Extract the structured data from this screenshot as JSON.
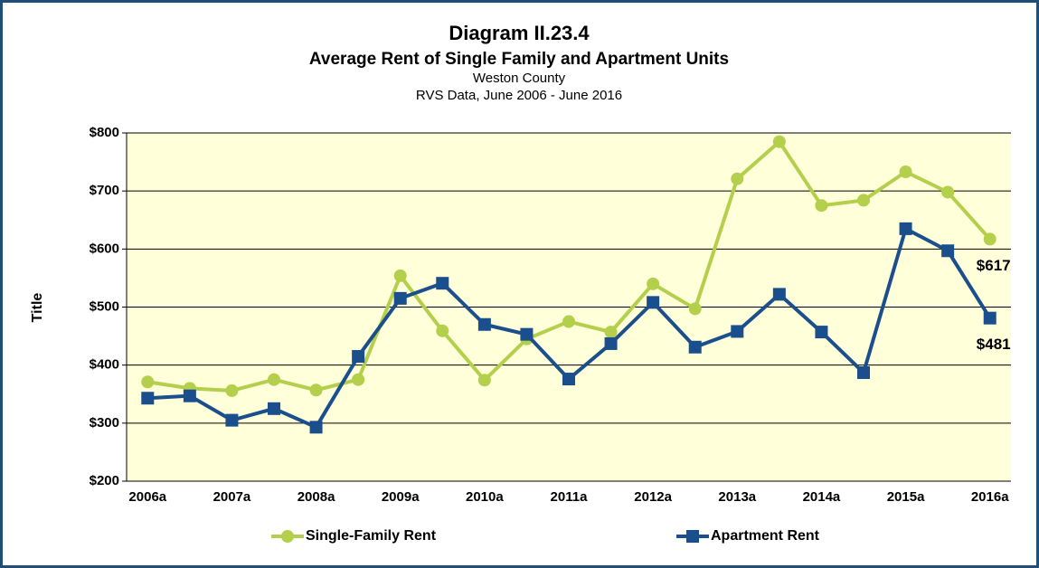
{
  "chart_data": {
    "type": "line",
    "title": "Diagram II.23.4",
    "subtitle": "Average Rent of Single Family and Apartment Units",
    "subtitle2": "Weston County",
    "subtitle3": "RVS Data, June 2006 - June 2016",
    "y_label": "Title",
    "categories": [
      "2006a",
      null,
      "2007a",
      null,
      "2008a",
      null,
      "2009a",
      null,
      "2010a",
      null,
      "2011a",
      null,
      "2012a",
      null,
      "2013a",
      null,
      "2014a",
      null,
      "2015a",
      null,
      "2016a"
    ],
    "series": [
      {
        "name": "Single-Family Rent",
        "color": "#b3cf4b",
        "marker": "circle",
        "values": [
          371,
          360,
          356,
          375,
          357,
          375,
          554,
          459,
          374,
          445,
          475,
          457,
          540,
          497,
          721,
          785,
          675,
          684,
          733,
          698,
          617
        ],
        "value_labels": [
          null,
          null,
          null,
          null,
          null,
          null,
          null,
          null,
          null,
          null,
          null,
          null,
          null,
          null,
          null,
          null,
          null,
          null,
          null,
          null,
          "$617"
        ]
      },
      {
        "name": "Apartment Rent",
        "color": "#1a4e8c",
        "marker": "square",
        "values": [
          343,
          347,
          305,
          325,
          293,
          415,
          515,
          541,
          470,
          453,
          376,
          437,
          508,
          431,
          458,
          522,
          457,
          387,
          635,
          597,
          481
        ],
        "value_labels": [
          null,
          null,
          null,
          null,
          null,
          null,
          null,
          null,
          null,
          null,
          null,
          null,
          null,
          null,
          null,
          null,
          null,
          null,
          null,
          null,
          "$481"
        ]
      }
    ],
    "ylim": [
      200,
      800
    ],
    "yticks": [
      {
        "value": 200,
        "label": "$200"
      },
      {
        "value": 300,
        "label": "$300"
      },
      {
        "value": 400,
        "label": "$400"
      },
      {
        "value": 500,
        "label": "$500"
      },
      {
        "value": 600,
        "label": "$600"
      },
      {
        "value": 700,
        "label": "$700"
      },
      {
        "value": 800,
        "label": "$800"
      }
    ],
    "grid": true,
    "legend": "bottom"
  }
}
